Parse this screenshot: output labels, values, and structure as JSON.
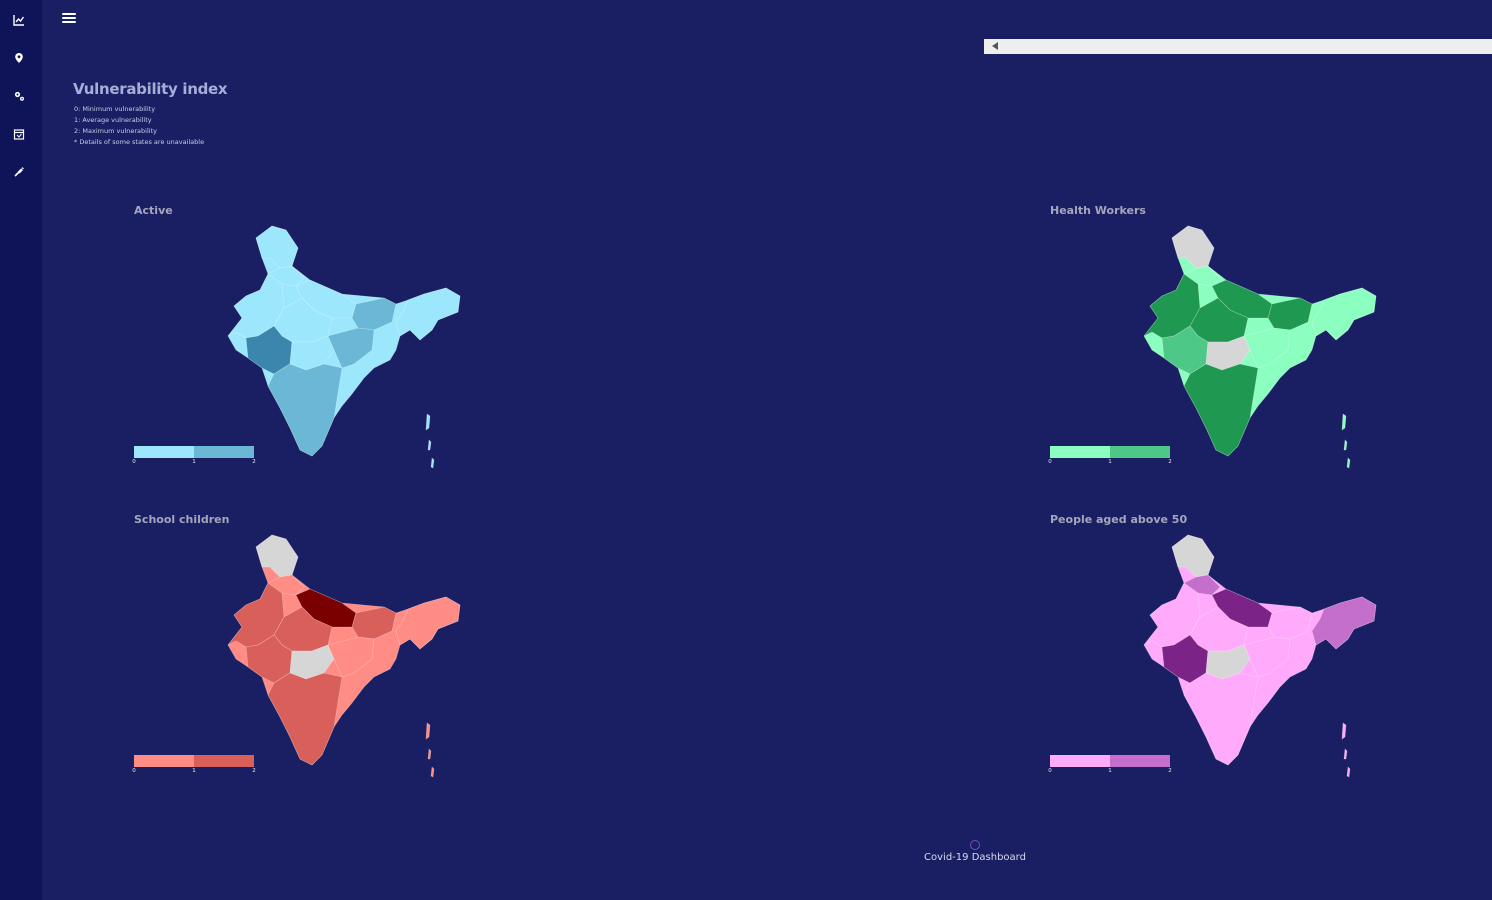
{
  "app": {
    "sidebar": [
      {
        "name": "chart-icon",
        "label": "Charts"
      },
      {
        "name": "location-pin-icon",
        "label": "Locations"
      },
      {
        "name": "gears-icon",
        "label": "Settings"
      },
      {
        "name": "calendar-icon",
        "label": "Calendar"
      },
      {
        "name": "syringe-icon",
        "label": "Vaccination"
      }
    ]
  },
  "header": {
    "title": "Vulnerability index",
    "lines": [
      "0: Minimum vulnerability",
      "1: Average vulnerability",
      "2: Maximum vulnerability",
      "* Details of some states are unavailable"
    ]
  },
  "panels": [
    {
      "id": "active",
      "title": "Active",
      "colors": [
        "#9de7fc",
        "#6ab7d6",
        "#3a86ad"
      ],
      "nodata": "#d6d6d6",
      "ticks": [
        "0",
        "1",
        "2"
      ]
    },
    {
      "id": "health",
      "title": "Health Workers",
      "colors": [
        "#8cffc0",
        "#4ec887",
        "#1f9852"
      ],
      "nodata": "#d6d6d6",
      "ticks": [
        "0",
        "1",
        "2"
      ]
    },
    {
      "id": "school",
      "title": "School children",
      "colors": [
        "#ff8c85",
        "#d9605a",
        "#7a0000"
      ],
      "nodata": "#d6d6d6",
      "ticks": [
        "0",
        "1",
        "2"
      ]
    },
    {
      "id": "aged",
      "title": "People aged above 50",
      "colors": [
        "#ffaafa",
        "#c36fcb",
        "#7c2387"
      ],
      "nodata": "#d6d6d6",
      "ticks": [
        "0",
        "1",
        "2"
      ]
    }
  ],
  "footer": {
    "text": "Covid-19 Dashboard"
  },
  "colors": {
    "background": "#1a1f63",
    "sidebar": "#0f1358",
    "accent": "#7a4bbf"
  }
}
